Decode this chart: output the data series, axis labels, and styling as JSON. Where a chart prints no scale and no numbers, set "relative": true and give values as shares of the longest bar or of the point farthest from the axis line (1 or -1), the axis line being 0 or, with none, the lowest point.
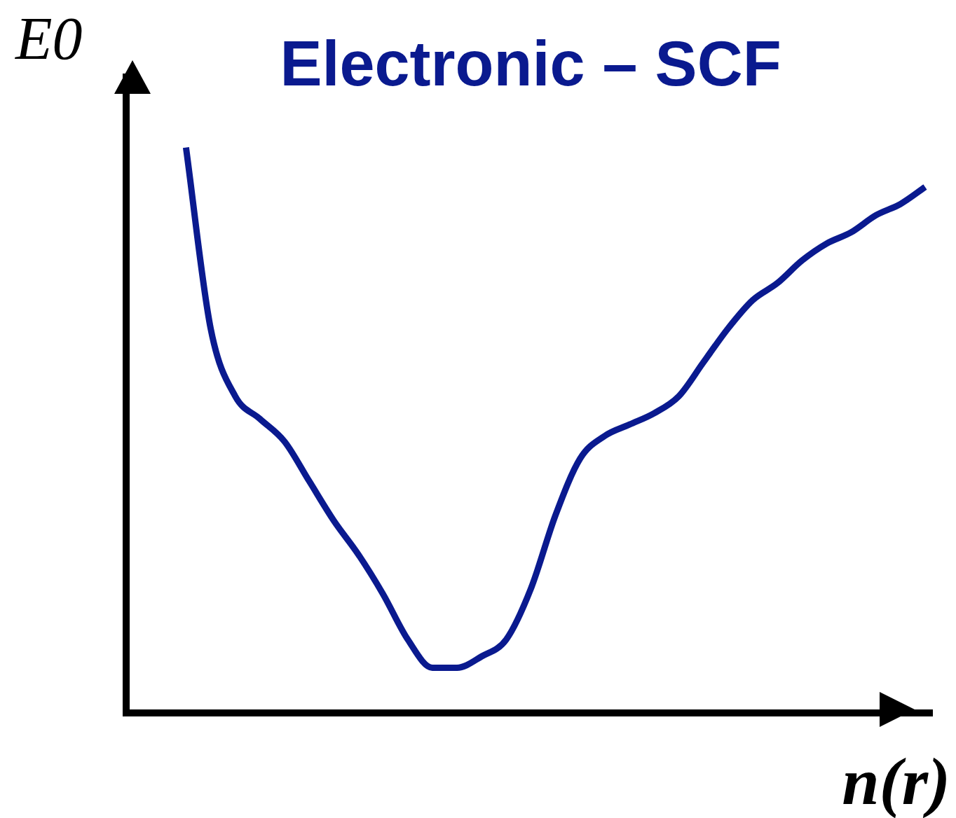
{
  "chart_data": {
    "type": "line",
    "title": "Electronic – SCF",
    "xlabel": "n(r)",
    "ylabel": "E0",
    "relative": true,
    "categories": [
      null,
      null,
      null,
      null,
      null,
      null,
      null,
      null,
      null,
      null,
      null,
      null,
      null,
      null,
      null,
      null,
      null,
      null,
      null,
      null,
      null,
      null,
      null,
      null,
      null,
      null,
      null,
      null,
      null,
      null,
      null
    ],
    "series": [
      {
        "color": "#0a1a8f",
        "values": [
          1.0,
          0.68,
          0.56,
          0.52,
          0.48,
          0.41,
          0.34,
          0.28,
          0.21,
          0.13,
          0.08,
          0.08,
          0.1,
          0.13,
          0.22,
          0.35,
          0.45,
          0.49,
          0.51,
          0.53,
          0.56,
          0.62,
          0.68,
          0.73,
          0.76,
          0.8,
          0.83,
          0.85,
          0.88,
          0.9,
          0.93
        ]
      }
    ]
  }
}
